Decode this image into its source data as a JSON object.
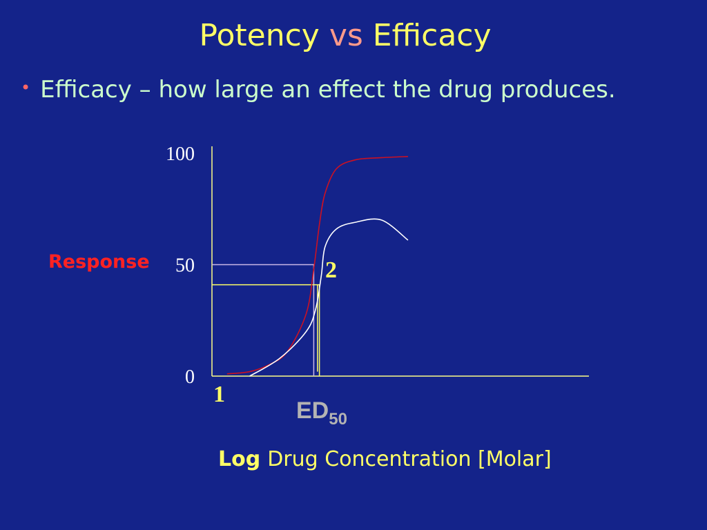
{
  "slide": {
    "title_part1": "Potency",
    "title_vs": "vs",
    "title_part2": "Efficacy",
    "bullet": "Efficacy – how large an effect the drug produces.",
    "bullet_marker": "•"
  },
  "colors": {
    "background": "#14238a",
    "title": "#ffff66",
    "vs": "#ff9a8a",
    "bullet_text": "#ccffcc",
    "curve_1": "#cc1122",
    "curve_2": "#ffffff",
    "response_label": "#ff2222",
    "axis": "#ffff88"
  },
  "chart_data": {
    "type": "line",
    "title": "",
    "ylabel": "Response",
    "xlabel_bold": "Log",
    "xlabel_rest": "Drug Concentration [Molar]",
    "y_ticks": [
      "100",
      "50",
      "0"
    ],
    "ylim": [
      0,
      100
    ],
    "xlim": [
      0,
      10
    ],
    "grid": false,
    "ed50_label": "ED",
    "ed50_sub": "50",
    "series": [
      {
        "name": "1",
        "color": "#cc1122",
        "points": [
          [
            0.4,
            1
          ],
          [
            1.0,
            2
          ],
          [
            1.5,
            5
          ],
          [
            2.0,
            11
          ],
          [
            2.5,
            28
          ],
          [
            2.7,
            48
          ],
          [
            2.85,
            68
          ],
          [
            3.0,
            82
          ],
          [
            3.3,
            93
          ],
          [
            3.8,
            97
          ],
          [
            4.5,
            98
          ],
          [
            5.2,
            98.5
          ]
        ]
      },
      {
        "name": "2",
        "color": "#ffffff",
        "points": [
          [
            1.0,
            0
          ],
          [
            1.8,
            8
          ],
          [
            2.5,
            20
          ],
          [
            2.75,
            30
          ],
          [
            2.9,
            45
          ],
          [
            3.0,
            58
          ],
          [
            3.3,
            66
          ],
          [
            3.8,
            69
          ],
          [
            4.5,
            70
          ],
          [
            5.2,
            61
          ]
        ]
      }
    ],
    "guides": [
      {
        "y": 50,
        "x": 2.7,
        "color": "#c9b8e6"
      },
      {
        "y": 41,
        "x": 2.85,
        "color": "#ffff66"
      }
    ],
    "extra_vertical": {
      "x": 2.8,
      "y_from": 2,
      "y_to": 41,
      "color": "#ffff66"
    }
  }
}
